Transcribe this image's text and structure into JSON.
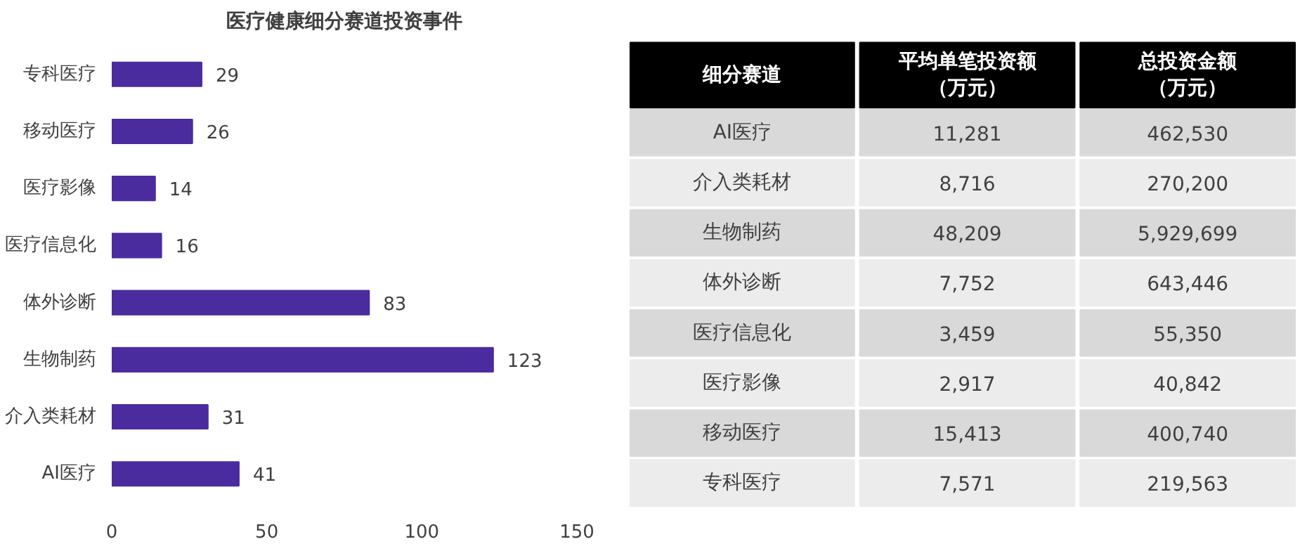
{
  "chart_data": [
    {
      "type": "bar",
      "title": "医疗健康细分赛道投资事件",
      "orientation": "horizontal",
      "categories": [
        "专科医疗",
        "移动医疗",
        "医疗影像",
        "医疗信息化",
        "体外诊断",
        "生物制药",
        "介入类耗材",
        "AI医疗"
      ],
      "values": [
        29,
        26,
        14,
        16,
        83,
        123,
        31,
        41
      ],
      "color": "#4b2c9e",
      "xlim": [
        0,
        150
      ],
      "xticks": [
        0,
        50,
        100,
        150
      ],
      "data_labels": true,
      "grid": false
    },
    {
      "type": "heatmap",
      "ylabel": "细分赛道",
      "categories": [
        "平均单笔投资额（万元）",
        "总投资金额（万元）"
      ],
      "y_categories": [
        "AI医疗",
        "介入类耗材",
        "生物制药",
        "体外诊断",
        "医疗信息化",
        "医疗影像",
        "移动医疗",
        "专科医疗"
      ],
      "cells": [
        [
          11281,
          462530
        ],
        [
          8716,
          270200
        ],
        [
          48209,
          5929699
        ],
        [
          7752,
          643446
        ],
        [
          3459,
          55350
        ],
        [
          2917,
          40842
        ],
        [
          15413,
          400740
        ],
        [
          7571,
          219563
        ]
      ],
      "cell_labels": [
        [
          "11,281",
          "462,530"
        ],
        [
          "8,716",
          "270,200"
        ],
        [
          "48,209",
          "5,929,699"
        ],
        [
          "7,752",
          "643,446"
        ],
        [
          "3,459",
          "55,350"
        ],
        [
          "2,917",
          "40,842"
        ],
        [
          "15,413",
          "400,740"
        ],
        [
          "7,571",
          "219,563"
        ]
      ]
    }
  ]
}
